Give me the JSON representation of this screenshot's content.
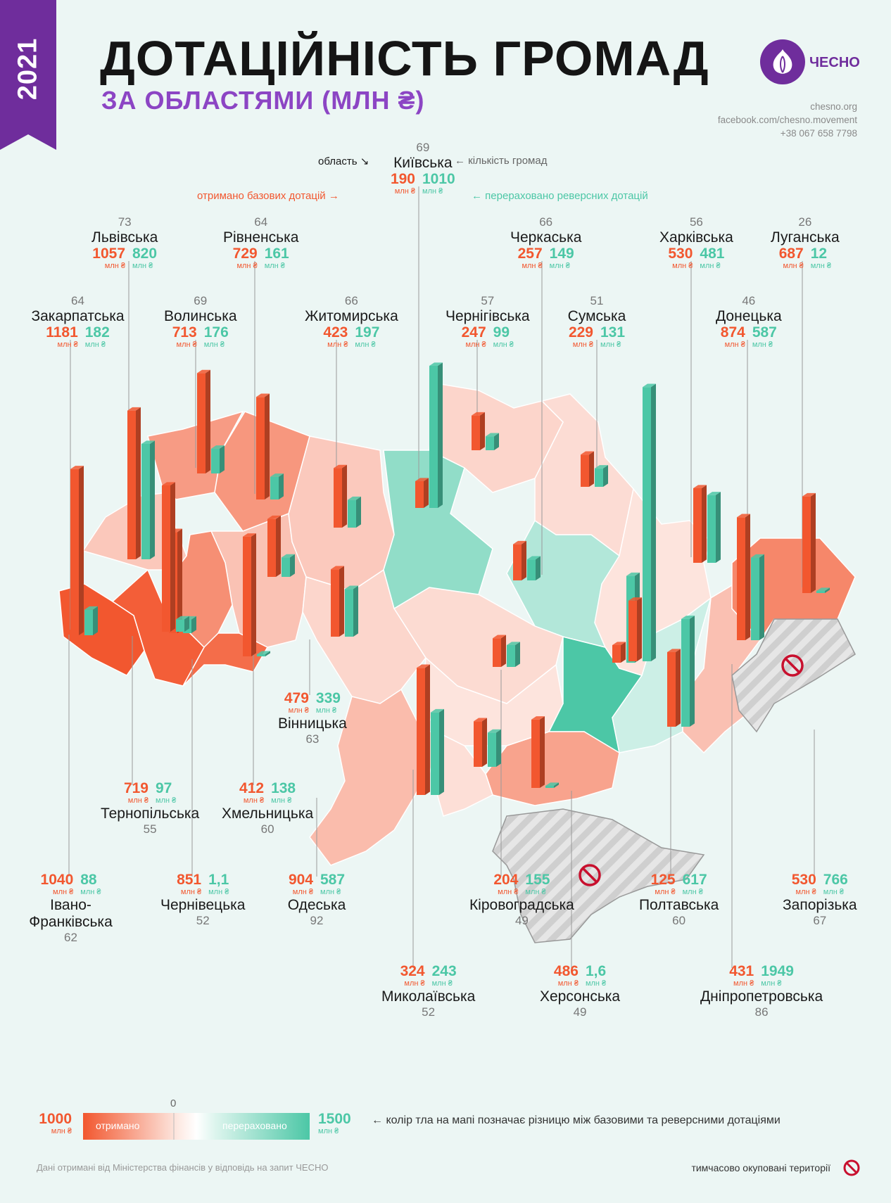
{
  "header": {
    "year": "2021",
    "title": "ДОТАЦІЙНІСТЬ ГРОМАД",
    "subtitle": "ЗА ОБЛАСТЯМИ (МЛН ₴)",
    "logo_text": "ЧЕСНО",
    "contacts": [
      "chesno.org",
      "facebook.com/chesno.movement",
      "+38 067 658 7798"
    ]
  },
  "legend_top": {
    "oblast": "область ↘",
    "count": "← кількість громад",
    "base": "отримано базових дотацій →",
    "reverse": "← перераховано реверсних дотацій"
  },
  "unit": "млн ₴",
  "chart_data": {
    "type": "bar",
    "title": "ДОТАЦІЙНІСТЬ ГРОМАД ЗА ОБЛАСТЯМИ (МЛН ₴)",
    "series": [
      {
        "name": "отримано базових дотацій",
        "color": "#f2572f"
      },
      {
        "name": "перераховано реверсних дотацій",
        "color": "#4cc7a6"
      }
    ],
    "regions": [
      {
        "id": "kyivska",
        "name": "Київська",
        "count": "69",
        "base": "190",
        "reverse": "1010",
        "bv": 190,
        "rv": 1010
      },
      {
        "id": "lvivska",
        "name": "Львівська",
        "count": "73",
        "base": "1057",
        "reverse": "820",
        "bv": 1057,
        "rv": 820
      },
      {
        "id": "rivnenska",
        "name": "Рівненська",
        "count": "64",
        "base": "729",
        "reverse": "161",
        "bv": 729,
        "rv": 161
      },
      {
        "id": "cherkaska",
        "name": "Черкаська",
        "count": "66",
        "base": "257",
        "reverse": "149",
        "bv": 257,
        "rv": 149
      },
      {
        "id": "kharkivska",
        "name": "Харківська",
        "count": "56",
        "base": "530",
        "reverse": "481",
        "bv": 530,
        "rv": 481
      },
      {
        "id": "luhanska",
        "name": "Луганська",
        "count": "26",
        "base": "687",
        "reverse": "12",
        "bv": 687,
        "rv": 12
      },
      {
        "id": "zakarpatska",
        "name": "Закарпатська",
        "count": "64",
        "base": "1181",
        "reverse": "182",
        "bv": 1181,
        "rv": 182
      },
      {
        "id": "volynska",
        "name": "Волинська",
        "count": "69",
        "base": "713",
        "reverse": "176",
        "bv": 713,
        "rv": 176
      },
      {
        "id": "zhytomyrska",
        "name": "Житомирська",
        "count": "66",
        "base": "423",
        "reverse": "197",
        "bv": 423,
        "rv": 197
      },
      {
        "id": "chernihivska",
        "name": "Чернігівська",
        "count": "57",
        "base": "247",
        "reverse": "99",
        "bv": 247,
        "rv": 99
      },
      {
        "id": "sumska",
        "name": "Сумська",
        "count": "51",
        "base": "229",
        "reverse": "131",
        "bv": 229,
        "rv": 131
      },
      {
        "id": "donetska",
        "name": "Донецька",
        "count": "46",
        "base": "874",
        "reverse": "587",
        "bv": 874,
        "rv": 587
      },
      {
        "id": "vinnytska",
        "name": "Вінницька",
        "count": "63",
        "base": "479",
        "reverse": "339",
        "bv": 479,
        "rv": 339
      },
      {
        "id": "ternopilska",
        "name": "Тернопільська",
        "count": "55",
        "base": "719",
        "reverse": "97",
        "bv": 719,
        "rv": 97
      },
      {
        "id": "khmelnytska",
        "name": "Хмельницька",
        "count": "60",
        "base": "412",
        "reverse": "138",
        "bv": 412,
        "rv": 138
      },
      {
        "id": "ivanofrankivska",
        "name": "Івано-\nФранківська",
        "count": "62",
        "base": "1040",
        "reverse": "88",
        "bv": 1040,
        "rv": 88
      },
      {
        "id": "chernivetska",
        "name": "Чернівецька",
        "count": "52",
        "base": "851",
        "reverse": "1,1",
        "bv": 851,
        "rv": 1.1
      },
      {
        "id": "odeska",
        "name": "Одеська",
        "count": "92",
        "base": "904",
        "reverse": "587",
        "bv": 904,
        "rv": 587
      },
      {
        "id": "kirovohradska",
        "name": "Кіровоградська",
        "count": "49",
        "base": "204",
        "reverse": "155",
        "bv": 204,
        "rv": 155
      },
      {
        "id": "poltavska",
        "name": "Полтавська",
        "count": "60",
        "base": "125",
        "reverse": "617",
        "bv": 125,
        "rv": 617
      },
      {
        "id": "zaporizka",
        "name": "Запорізька",
        "count": "67",
        "base": "530",
        "reverse": "766",
        "bv": 530,
        "rv": 766
      },
      {
        "id": "mykolaivska",
        "name": "Миколаївська",
        "count": "52",
        "base": "324",
        "reverse": "243",
        "bv": 324,
        "rv": 243
      },
      {
        "id": "khersonska",
        "name": "Херсонська",
        "count": "49",
        "base": "486",
        "reverse": "1,6",
        "bv": 486,
        "rv": 1.6
      },
      {
        "id": "dnipropetrovska",
        "name": "Дніпропетровська",
        "count": "86",
        "base": "431",
        "reverse": "1949",
        "bv": 431,
        "rv": 1949
      }
    ]
  },
  "bottom_legend": {
    "left_value": "1000",
    "zero": "0",
    "right_value": "1500",
    "received": "отримано",
    "transferred": "перераховано",
    "note": "← колір тла на мапі позначає різницю між базовими та реверсними дотаціями"
  },
  "source": "Дані отримані від Міністерства фінансів у відповідь на запит ЧЕСНО",
  "occupied": "тимчасово окуповані території",
  "colors": {
    "base": "#f2572f",
    "reverse": "#4cc7a6",
    "purple": "#6f2d9c",
    "bg": "#ecf6f4"
  }
}
